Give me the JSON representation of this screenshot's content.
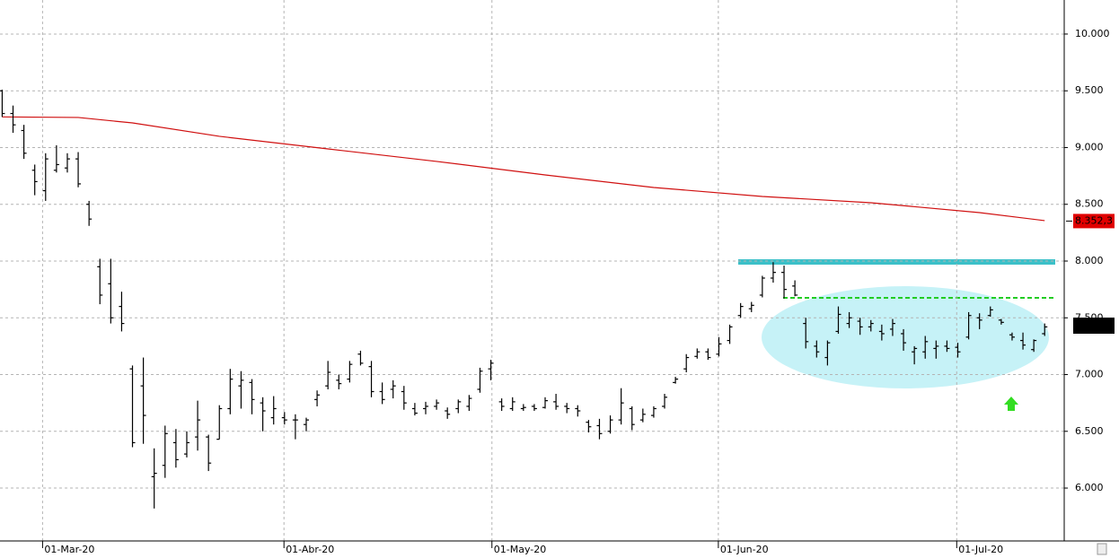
{
  "chart_data": {
    "type": "ohlc",
    "ylim": [
      5534,
      10300
    ],
    "xlim": [
      -0.2,
      97.8
    ],
    "yticks": [
      {
        "value": 6000,
        "label": "6.000"
      },
      {
        "value": 6500,
        "label": "6.500"
      },
      {
        "value": 7000,
        "label": "7.000"
      },
      {
        "value": 7500,
        "label": "7.500"
      },
      {
        "value": 8000,
        "label": "8.000"
      },
      {
        "value": 8500,
        "label": "8.500"
      },
      {
        "value": 9000,
        "label": "9.000"
      },
      {
        "value": 9500,
        "label": "9.500"
      },
      {
        "value": 10000,
        "label": "10.000"
      }
    ],
    "xticks": [
      {
        "value": 3.72,
        "label": "01-Mar-20"
      },
      {
        "value": 25.95,
        "label": "01-Abr-20"
      },
      {
        "value": 45.1,
        "label": "01-May-20"
      },
      {
        "value": 65.95,
        "label": "01-Jun-20"
      },
      {
        "value": 87.9,
        "label": "01-Jul-20"
      }
    ],
    "grid": true,
    "color": "#000000",
    "open": [
      9500,
      9300,
      9150,
      8800,
      8620,
      8800,
      8820,
      8900,
      8500,
      7950,
      7800,
      7600,
      7050,
      6900,
      6100,
      6200,
      6400,
      6300,
      6450,
      6450,
      6430,
      6700,
      6900,
      6930,
      6750,
      6620,
      6620,
      6600,
      6560,
      6780,
      6900,
      6950,
      6960,
      7180,
      7070,
      6850,
      6870,
      6850,
      6700,
      6700,
      6720,
      6680,
      6700,
      6720,
      6870,
      7050,
      6760,
      6700,
      6700,
      6720,
      6710,
      6760,
      6720,
      6700,
      6580,
      6550,
      6500,
      6600,
      6700,
      6600,
      6640,
      6720,
      6930,
      7050,
      7160,
      7200,
      7180,
      7300,
      7520,
      7580,
      7700,
      7850,
      7900,
      7780,
      7450,
      7250,
      7150,
      7380,
      7450,
      7470,
      7420,
      7380,
      7400,
      7360,
      7200,
      7200,
      7230,
      7250,
      7240,
      7330,
      7500,
      7520,
      7480,
      7350,
      7300,
      7220,
      7360
    ],
    "high": [
      9510,
      9370,
      9200,
      8850,
      8950,
      9020,
      8950,
      8960,
      8530,
      8020,
      8020,
      7730,
      7080,
      7150,
      6350,
      6550,
      6520,
      6500,
      6770,
      6470,
      6730,
      7050,
      7030,
      6960,
      6800,
      6810,
      6670,
      6650,
      6620,
      6860,
      7120,
      7000,
      7120,
      7210,
      7120,
      6930,
      6950,
      6900,
      6750,
      6760,
      6780,
      6710,
      6780,
      6820,
      7060,
      7130,
      6790,
      6800,
      6740,
      6740,
      6800,
      6830,
      6750,
      6730,
      6600,
      6610,
      6640,
      6880,
      6720,
      6700,
      6720,
      6830,
      6980,
      7180,
      7230,
      7230,
      7330,
      7440,
      7630,
      7640,
      7870,
      7990,
      7960,
      7830,
      7500,
      7300,
      7300,
      7600,
      7550,
      7500,
      7480,
      7440,
      7490,
      7400,
      7250,
      7340,
      7300,
      7300,
      7280,
      7550,
      7540,
      7600,
      7490,
      7370,
      7370,
      7310,
      7450
    ],
    "low": [
      9270,
      9130,
      8900,
      8580,
      8530,
      8780,
      8780,
      8650,
      8310,
      7620,
      7450,
      7380,
      6360,
      6390,
      5820,
      6090,
      6180,
      6270,
      6330,
      6150,
      6430,
      6650,
      6700,
      6650,
      6500,
      6560,
      6560,
      6430,
      6500,
      6720,
      6870,
      6870,
      6930,
      7080,
      6800,
      6740,
      6790,
      6690,
      6640,
      6650,
      6690,
      6610,
      6660,
      6680,
      6840,
      6950,
      6680,
      6680,
      6680,
      6680,
      6700,
      6690,
      6660,
      6630,
      6490,
      6430,
      6480,
      6560,
      6510,
      6580,
      6620,
      6700,
      6920,
      7020,
      7140,
      7130,
      7160,
      7270,
      7500,
      7550,
      7680,
      7810,
      7670,
      7690,
      7230,
      7150,
      7080,
      7360,
      7410,
      7350,
      7380,
      7300,
      7340,
      7210,
      7090,
      7140,
      7140,
      7200,
      7150,
      7310,
      7400,
      7510,
      7440,
      7300,
      7220,
      7200,
      7340
    ],
    "close": [
      9300,
      9200,
      8950,
      8700,
      8900,
      8850,
      8900,
      8680,
      8370,
      7700,
      7500,
      7450,
      6400,
      6640,
      6130,
      6480,
      6250,
      6400,
      6600,
      6220,
      6700,
      6960,
      6950,
      6780,
      6680,
      6700,
      6600,
      6600,
      6600,
      6820,
      7020,
      6920,
      7090,
      7100,
      6850,
      6780,
      6900,
      6750,
      6660,
      6720,
      6750,
      6650,
      6760,
      6790,
      7030,
      7100,
      6720,
      6760,
      6710,
      6700,
      6770,
      6720,
      6700,
      6680,
      6540,
      6480,
      6600,
      6750,
      6560,
      6650,
      6700,
      6800,
      6960,
      7150,
      7200,
      7150,
      7270,
      7420,
      7600,
      7610,
      7850,
      7900,
      7750,
      7700,
      7290,
      7200,
      7280,
      7530,
      7500,
      7420,
      7450,
      7360,
      7450,
      7280,
      7230,
      7290,
      7250,
      7230,
      7200,
      7520,
      7480,
      7570,
      7460,
      7330,
      7260,
      7300,
      7420
    ],
    "ma": {
      "color": "#d01010",
      "x": [
        0,
        7,
        12,
        20,
        30,
        40,
        50,
        60,
        70,
        80,
        90,
        96
      ],
      "values": [
        9270,
        9265,
        9217,
        9099,
        8988,
        8878,
        8759,
        8648,
        8569,
        8514,
        8427,
        8356
      ]
    },
    "last_price": {
      "value": 8352.3,
      "label": "8.352,3",
      "color": "#e00000"
    }
  }
}
